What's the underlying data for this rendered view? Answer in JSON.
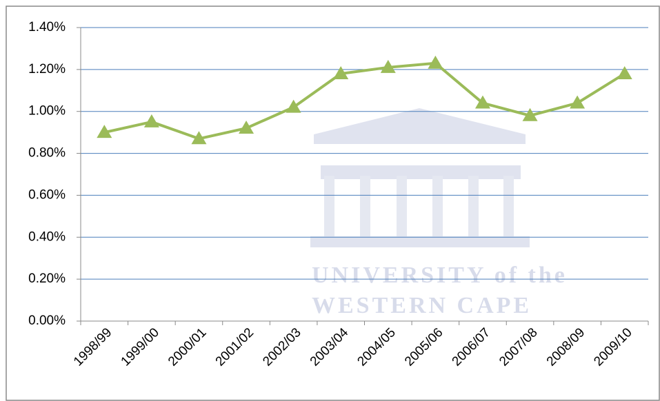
{
  "chart_data": {
    "type": "line",
    "categories": [
      "1998/99",
      "1999/00",
      "2000/01",
      "2001/02",
      "2002/03",
      "2003/04",
      "2004/05",
      "2005/06",
      "2006/07",
      "2007/08",
      "2008/09",
      "2009/10"
    ],
    "series": [
      {
        "color": "#9bbb59",
        "values": [
          0.9,
          0.95,
          0.87,
          0.92,
          1.02,
          1.18,
          1.21,
          1.23,
          1.04,
          0.98,
          1.04,
          1.18
        ]
      }
    ],
    "ylim": [
      0,
      1.4
    ],
    "yticks": [
      {
        "value": 0,
        "label": "0.00%"
      },
      {
        "value": 0.2,
        "label": "0.20%"
      },
      {
        "value": 0.4,
        "label": "0.40%"
      },
      {
        "value": 0.6,
        "label": "0.60%"
      },
      {
        "value": 0.8,
        "label": "0.80%"
      },
      {
        "value": 1.0,
        "label": "1.00%"
      },
      {
        "value": 1.2,
        "label": "1.20%"
      },
      {
        "value": 1.4,
        "label": "1.40%"
      }
    ],
    "grid": true,
    "watermark": [
      "UNIVERSITY of the",
      "WESTERN CAPE"
    ]
  }
}
